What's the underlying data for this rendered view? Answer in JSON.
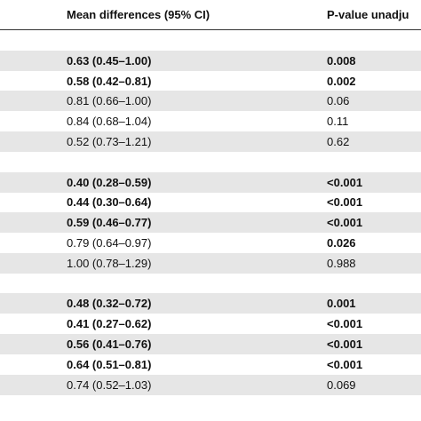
{
  "table": {
    "header": [
      "Mean differences (95% CI)",
      "P-value unadju"
    ],
    "groups": [
      {
        "rows": [
          {
            "cells": [
              "0.63 (0.45–1.00)",
              "0.008"
            ],
            "bold": [
              true,
              true
            ]
          },
          {
            "cells": [
              "0.58 (0.42–0.81)",
              "0.002"
            ],
            "bold": [
              true,
              true
            ]
          },
          {
            "cells": [
              "0.81 (0.66–1.00)",
              "0.06"
            ],
            "bold": [
              false,
              false
            ]
          },
          {
            "cells": [
              "0.84 (0.68–1.04)",
              "0.11"
            ],
            "bold": [
              false,
              false
            ]
          },
          {
            "cells": [
              "0.52 (0.73–1.21)",
              "0.62"
            ],
            "bold": [
              false,
              false
            ]
          }
        ]
      },
      {
        "rows": [
          {
            "cells": [
              "0.40 (0.28–0.59)",
              "<0.001"
            ],
            "bold": [
              true,
              true
            ]
          },
          {
            "cells": [
              "0.44 (0.30–0.64)",
              "<0.001"
            ],
            "bold": [
              true,
              true
            ]
          },
          {
            "cells": [
              "0.59 (0.46–0.77)",
              "<0.001"
            ],
            "bold": [
              true,
              true
            ]
          },
          {
            "cells": [
              "0.79 (0.64–0.97)",
              "0.026"
            ],
            "bold": [
              false,
              true
            ]
          },
          {
            "cells": [
              "1.00 (0.78–1.29)",
              "0.988"
            ],
            "bold": [
              false,
              false
            ]
          }
        ]
      },
      {
        "rows": [
          {
            "cells": [
              "0.48 (0.32–0.72)",
              "0.001"
            ],
            "bold": [
              true,
              true
            ]
          },
          {
            "cells": [
              "0.41 (0.27–0.62)",
              "<0.001"
            ],
            "bold": [
              true,
              true
            ]
          },
          {
            "cells": [
              "0.56 (0.41–0.76)",
              "<0.001"
            ],
            "bold": [
              true,
              true
            ]
          },
          {
            "cells": [
              "0.64 (0.51–0.81)",
              "<0.001"
            ],
            "bold": [
              true,
              true
            ]
          },
          {
            "cells": [
              "0.74 (0.52–1.03)",
              "0.069"
            ],
            "bold": [
              false,
              false
            ]
          }
        ]
      }
    ]
  }
}
